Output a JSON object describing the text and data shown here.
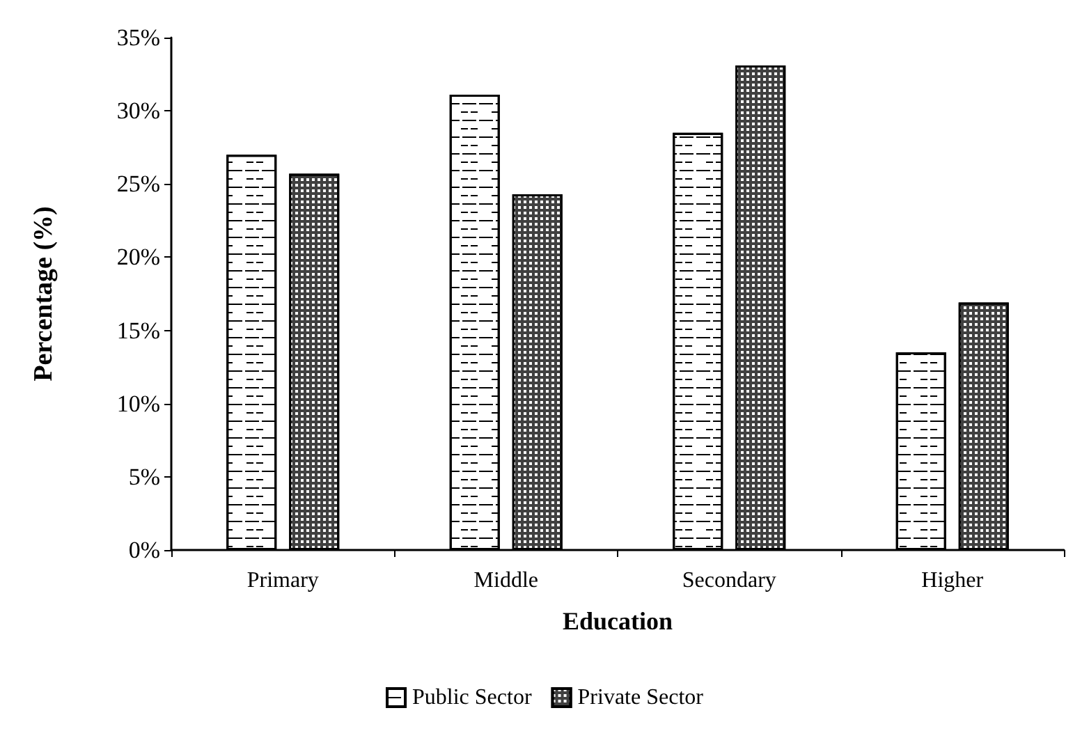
{
  "chart_data": {
    "type": "bar",
    "xlabel": "Education",
    "ylabel": "Percentage (%)",
    "categories": [
      "Primary",
      "Middle",
      "Secondary",
      "Higher"
    ],
    "series": [
      {
        "name": "Public Sector",
        "color": "#ffffff",
        "values": [
          27.0,
          31.1,
          28.5,
          13.5
        ]
      },
      {
        "name": "Private Sector",
        "color": "#404040",
        "values": [
          25.7,
          24.3,
          33.1,
          16.9
        ]
      }
    ],
    "ylim": [
      0,
      35
    ],
    "yticks": [
      {
        "value": 0,
        "label": "0%"
      },
      {
        "value": 5,
        "label": "5%"
      },
      {
        "value": 10,
        "label": "10%"
      },
      {
        "value": 15,
        "label": "15%"
      },
      {
        "value": 20,
        "label": "20%"
      },
      {
        "value": 25,
        "label": "25%"
      },
      {
        "value": 30,
        "label": "30%"
      },
      {
        "value": 35,
        "label": "35%"
      }
    ],
    "grid": false,
    "legend": "bottom"
  }
}
